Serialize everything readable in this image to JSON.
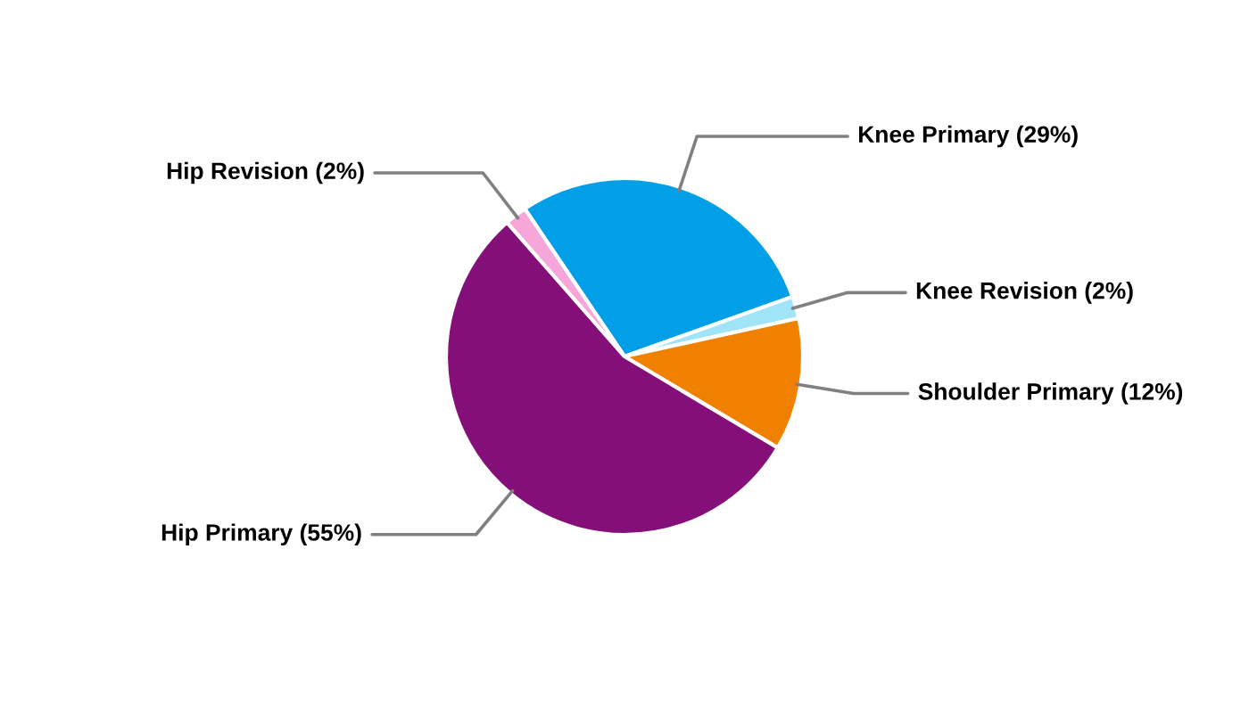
{
  "chart_data": {
    "type": "pie",
    "categories": [
      "Knee Primary (29%)",
      "Knee Revision (2%)",
      "Shoulder Primary (12%)",
      "Hip Primary (55%)",
      "Hip Revision (2%)"
    ],
    "values": [
      29,
      2,
      12,
      55,
      2
    ],
    "colors": [
      "#009fe8",
      "#a0e4f8",
      "#f08000",
      "#850f79",
      "#f6a6d9"
    ]
  }
}
